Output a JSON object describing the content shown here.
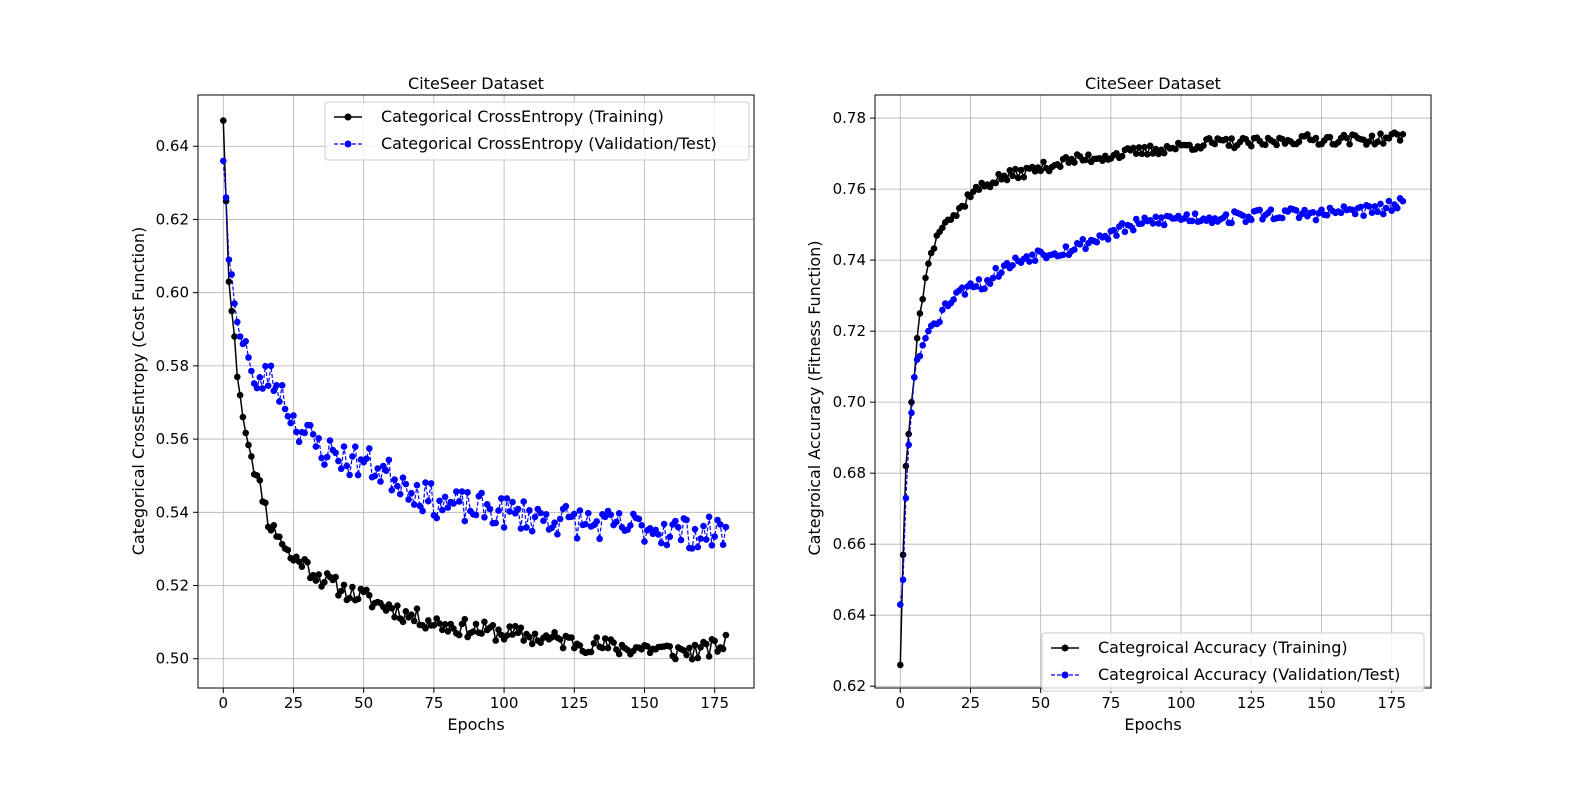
{
  "chart_data": [
    {
      "type": "line",
      "title": "CiteSeer Dataset",
      "xlabel": "Epochs",
      "ylabel": "Categorical CrossEntropy (Cost Function)",
      "xlim": [
        -9,
        189
      ],
      "ylim": [
        0.492,
        0.654
      ],
      "xticks": [
        0,
        25,
        50,
        75,
        100,
        125,
        150,
        175
      ],
      "yticks": [
        0.5,
        0.52,
        0.54,
        0.56,
        0.58,
        0.6,
        0.62,
        0.64
      ],
      "ytick_decimals": 2,
      "grid": true,
      "legend": "top-right",
      "series": [
        {
          "name": "Categorical CrossEntropy (Training)",
          "color": "#000000",
          "linestyle": "solid",
          "marker": "circle",
          "key_x": [
            0,
            1,
            2,
            3,
            4,
            5,
            6,
            7,
            8,
            10,
            12,
            14,
            16,
            18,
            20,
            22,
            25,
            28,
            30,
            35,
            40,
            45,
            50,
            55,
            60,
            65,
            70,
            75,
            80,
            90,
            100,
            110,
            120,
            130,
            140,
            150,
            160,
            170,
            179
          ],
          "key_y": [
            0.647,
            0.625,
            0.603,
            0.595,
            0.588,
            0.577,
            0.572,
            0.566,
            0.563,
            0.556,
            0.549,
            0.545,
            0.538,
            0.535,
            0.534,
            0.53,
            0.527,
            0.527,
            0.525,
            0.522,
            0.52,
            0.518,
            0.517,
            0.515,
            0.514,
            0.512,
            0.511,
            0.51,
            0.509,
            0.508,
            0.507,
            0.506,
            0.505,
            0.504,
            0.503,
            0.503,
            0.502,
            0.502,
            0.504
          ],
          "noise": 0.0025,
          "noise_start": 8,
          "seed": 11
        },
        {
          "name": "Categorical CrossEntropy (Validation/Test)",
          "color": "#0000ff",
          "linestyle": "dashed",
          "marker": "circle",
          "key_x": [
            0,
            1,
            2,
            3,
            4,
            5,
            6,
            7,
            8,
            10,
            12,
            15,
            20,
            25,
            30,
            35,
            40,
            45,
            50,
            55,
            60,
            65,
            70,
            75,
            80,
            90,
            100,
            110,
            120,
            130,
            140,
            150,
            160,
            170,
            179
          ],
          "key_y": [
            0.636,
            0.626,
            0.609,
            0.605,
            0.597,
            0.592,
            0.588,
            0.586,
            0.589,
            0.578,
            0.572,
            0.578,
            0.574,
            0.565,
            0.561,
            0.557,
            0.556,
            0.554,
            0.554,
            0.552,
            0.55,
            0.548,
            0.545,
            0.543,
            0.542,
            0.541,
            0.54,
            0.539,
            0.538,
            0.537,
            0.536,
            0.536,
            0.535,
            0.534,
            0.535
          ],
          "noise": 0.0045,
          "noise_start": 8,
          "seed": 23
        }
      ]
    },
    {
      "type": "line",
      "title": "CiteSeer Dataset",
      "xlabel": "Epochs",
      "ylabel": "Categroical Accuracy (Fitness Function)",
      "xlim": [
        -9,
        189
      ],
      "ylim": [
        0.6195,
        0.7865
      ],
      "xticks": [
        0,
        25,
        50,
        75,
        100,
        125,
        150,
        175
      ],
      "yticks": [
        0.62,
        0.64,
        0.66,
        0.68,
        0.7,
        0.72,
        0.74,
        0.76,
        0.78
      ],
      "ytick_decimals": 2,
      "grid": true,
      "legend": "bottom-right",
      "series": [
        {
          "name": "Categroical Accuracy (Training)",
          "color": "#000000",
          "linestyle": "solid",
          "marker": "circle",
          "key_x": [
            0,
            1,
            2,
            3,
            4,
            5,
            6,
            7,
            8,
            9,
            10,
            11,
            12,
            14,
            16,
            18,
            20,
            22,
            25,
            30,
            35,
            40,
            45,
            50,
            60,
            70,
            80,
            90,
            100,
            110,
            120,
            130,
            140,
            150,
            160,
            170,
            179
          ],
          "key_y": [
            0.626,
            0.657,
            0.682,
            0.691,
            0.7,
            0.707,
            0.718,
            0.725,
            0.729,
            0.735,
            0.739,
            0.742,
            0.744,
            0.749,
            0.752,
            0.752,
            0.753,
            0.755,
            0.759,
            0.761,
            0.763,
            0.764,
            0.765,
            0.766,
            0.768,
            0.769,
            0.77,
            0.771,
            0.772,
            0.773,
            0.773,
            0.773,
            0.774,
            0.774,
            0.774,
            0.774,
            0.775
          ],
          "noise": 0.0015,
          "noise_start": 12,
          "seed": 37
        },
        {
          "name": "Categroical Accuracy (Validation/Test)",
          "color": "#0000ff",
          "linestyle": "dashed",
          "marker": "circle",
          "key_x": [
            0,
            1,
            2,
            3,
            4,
            5,
            6,
            7,
            8,
            9,
            10,
            12,
            14,
            16,
            18,
            20,
            22,
            25,
            30,
            35,
            40,
            45,
            50,
            60,
            70,
            80,
            90,
            100,
            110,
            120,
            130,
            140,
            150,
            160,
            170,
            179
          ],
          "key_y": [
            0.643,
            0.65,
            0.673,
            0.688,
            0.697,
            0.707,
            0.712,
            0.713,
            0.716,
            0.718,
            0.72,
            0.723,
            0.724,
            0.727,
            0.729,
            0.731,
            0.731,
            0.734,
            0.733,
            0.737,
            0.739,
            0.741,
            0.742,
            0.743,
            0.746,
            0.749,
            0.751,
            0.752,
            0.752,
            0.752,
            0.753,
            0.753,
            0.753,
            0.754,
            0.754,
            0.756
          ],
          "noise": 0.0018,
          "noise_start": 12,
          "seed": 53
        }
      ]
    }
  ]
}
